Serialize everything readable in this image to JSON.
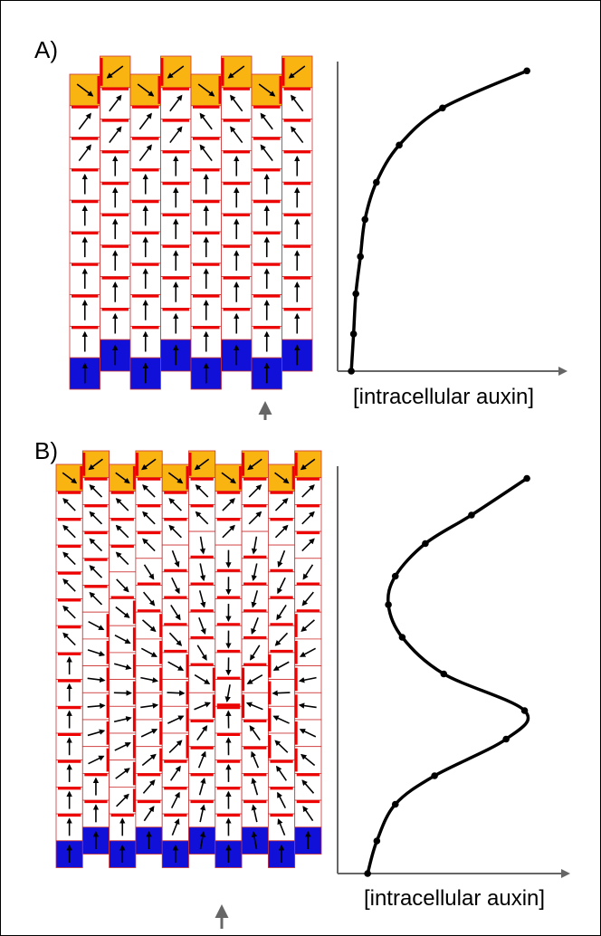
{
  "panels": [
    {
      "label": "A)",
      "x_label": "[intracellular auxin]",
      "profile": {
        "auxin": [
          83,
          46,
          27,
          17,
          12,
          10,
          8,
          7,
          6
        ],
        "position": [
          97,
          85,
          73,
          61,
          49,
          37,
          25,
          12,
          0
        ]
      }
    },
    {
      "label": "B)",
      "x_label": "[intracellular auxin]",
      "profile": {
        "auxin": [
          82,
          58,
          38,
          25,
          22,
          28,
          46,
          81,
          73,
          42,
          25,
          17,
          13
        ],
        "position": [
          97,
          88,
          81,
          73,
          66,
          58,
          49,
          40,
          33,
          24,
          17,
          8,
          0
        ]
      }
    }
  ]
}
